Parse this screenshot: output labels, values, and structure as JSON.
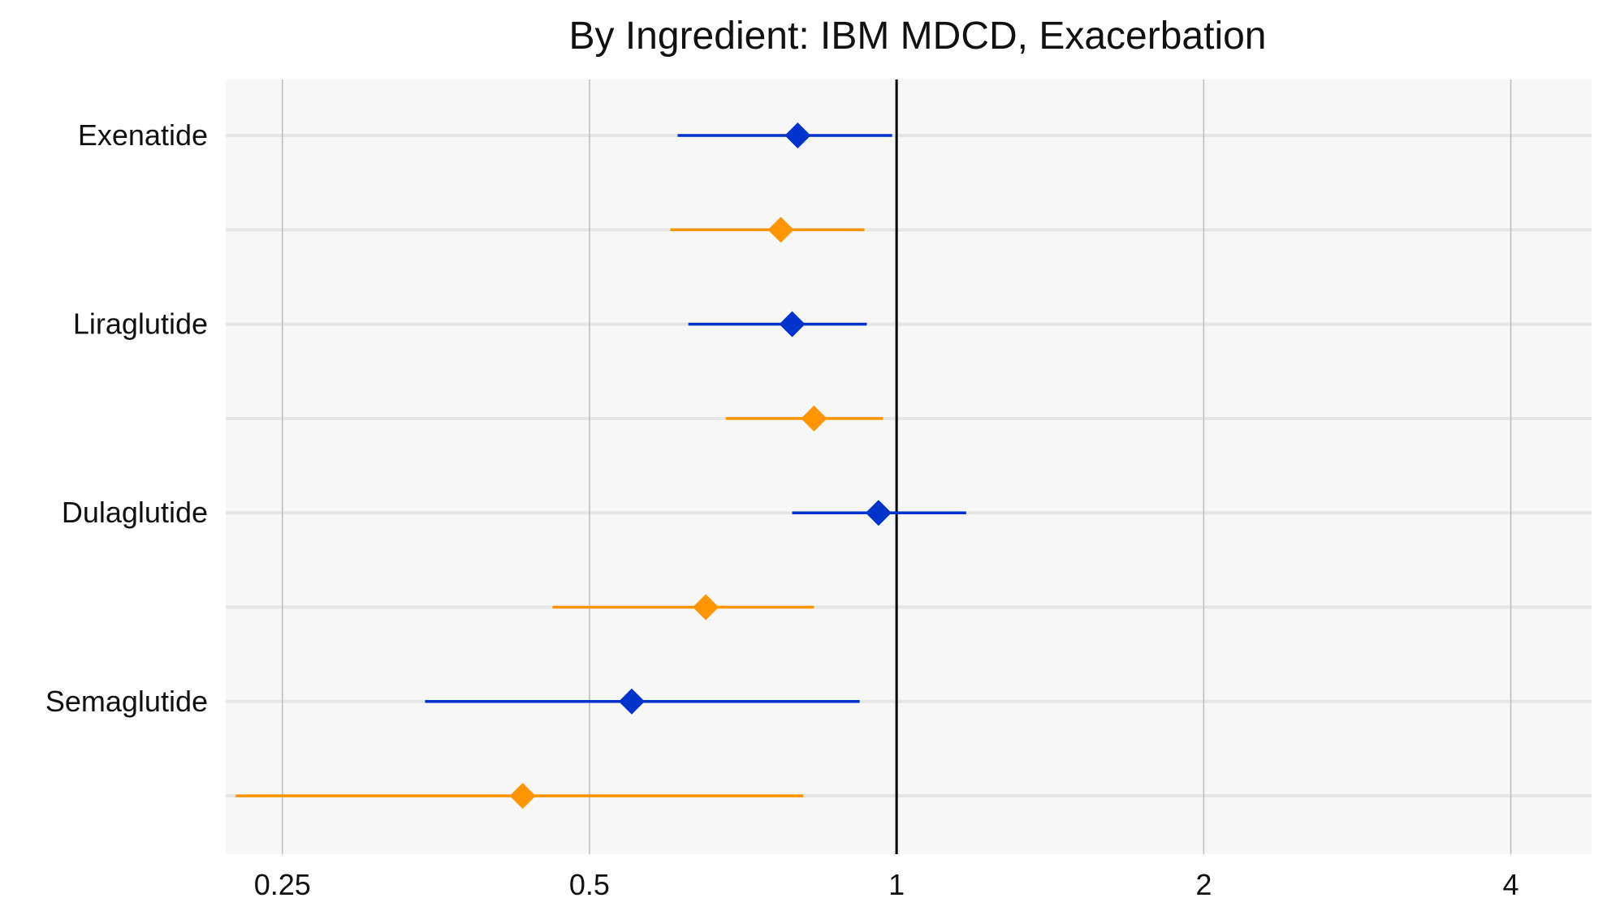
{
  "chart_data": {
    "type": "scatter",
    "subtype": "forest-plot",
    "title": "By Ingredient: IBM MDCD, Exacerbation",
    "xlabel": "",
    "ylabel": "",
    "x_scale": "log2",
    "xlim": [
      0.22,
      4.8
    ],
    "x_ticks": [
      0.25,
      0.5,
      1,
      2,
      4
    ],
    "x_tick_labels": [
      "0.25",
      "0.5",
      "1",
      "2",
      "4"
    ],
    "reference_line": 1,
    "grid": true,
    "legend": "none",
    "categories": [
      "Exenatide",
      "Liraglutide",
      "Dulaglutide",
      "Semaglutide"
    ],
    "colors": {
      "blue": "#0033cc",
      "orange": "#ff9500",
      "panel": "#f7f7f7",
      "grid_major": "#bdbdbd",
      "grid_row": "#e6e6e6",
      "ref": "#000000"
    },
    "rows": [
      {
        "category": "Exenatide",
        "color": "#0033cc",
        "estimate": 0.8,
        "lower": 0.61,
        "upper": 0.99
      },
      {
        "category": "Exenatide",
        "color": "#ff9500",
        "estimate": 0.77,
        "lower": 0.6,
        "upper": 0.93
      },
      {
        "category": "Liraglutide",
        "color": "#0033cc",
        "estimate": 0.79,
        "lower": 0.625,
        "upper": 0.935
      },
      {
        "category": "Liraglutide",
        "color": "#ff9500",
        "estimate": 0.83,
        "lower": 0.68,
        "upper": 0.97
      },
      {
        "category": "Dulaglutide",
        "color": "#0033cc",
        "estimate": 0.96,
        "lower": 0.79,
        "upper": 1.17
      },
      {
        "category": "Dulaglutide",
        "color": "#ff9500",
        "estimate": 0.65,
        "lower": 0.46,
        "upper": 0.83
      },
      {
        "category": "Semaglutide",
        "color": "#0033cc",
        "estimate": 0.55,
        "lower": 0.345,
        "upper": 0.92
      },
      {
        "category": "Semaglutide",
        "color": "#ff9500",
        "estimate": 0.43,
        "lower": 0.225,
        "upper": 0.81
      }
    ]
  }
}
